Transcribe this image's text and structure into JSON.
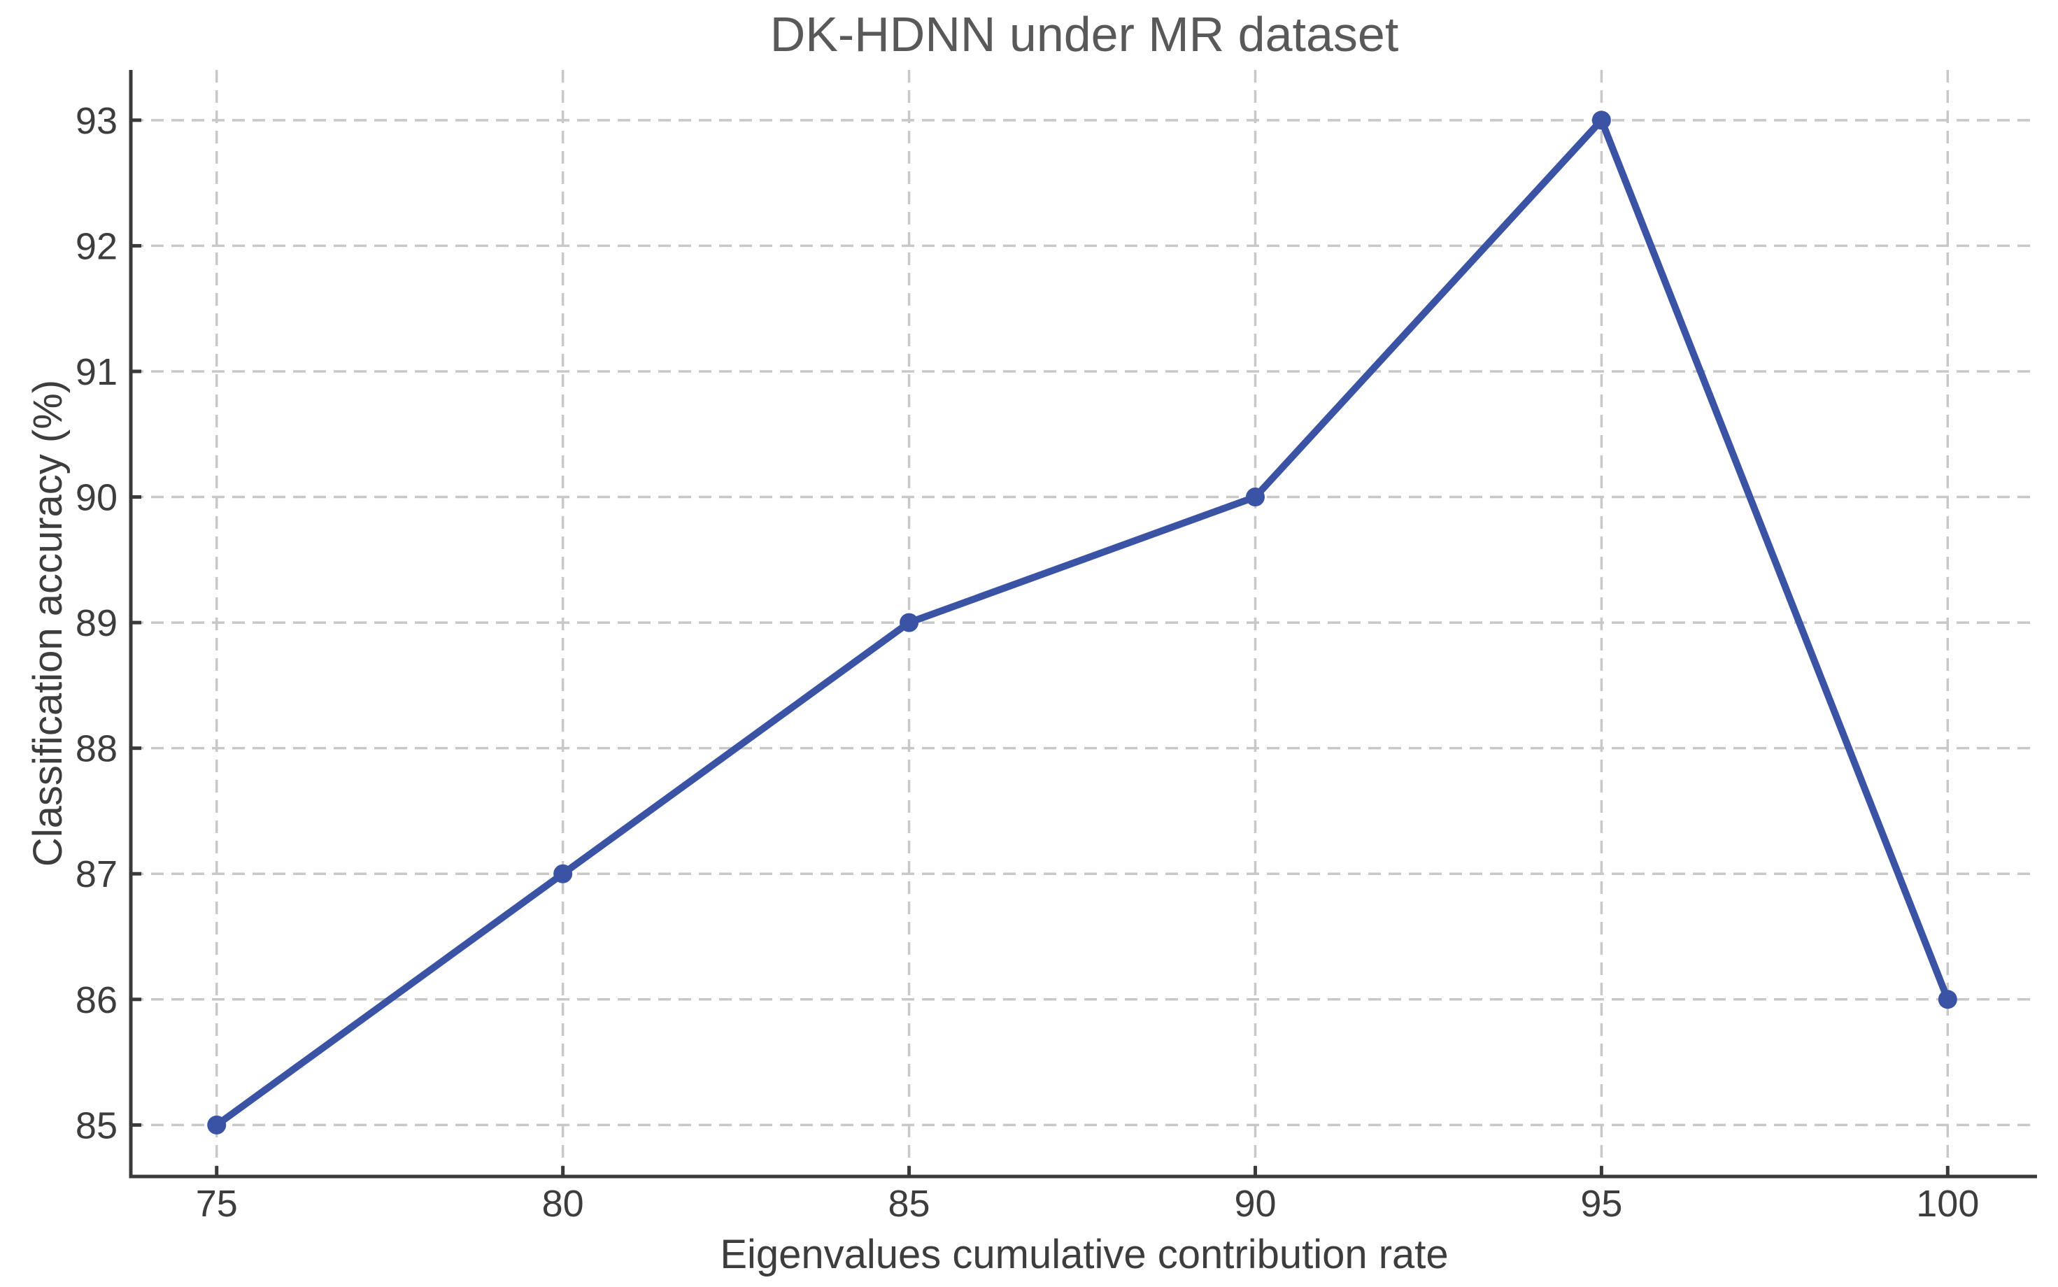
{
  "chart_data": {
    "type": "line",
    "title": "DK-HDNN under MR dataset",
    "xlabel": "Eigenvalues cumulative contribution rate",
    "ylabel": "Classification accuracy (%)",
    "x": [
      75,
      80,
      85,
      90,
      95,
      100
    ],
    "y": [
      85,
      87,
      89,
      90,
      93,
      86
    ],
    "xticks": [
      75,
      80,
      85,
      90,
      95,
      100
    ],
    "yticks": [
      85,
      86,
      87,
      88,
      89,
      90,
      91,
      92,
      93
    ],
    "xlim": [
      73.76,
      101.29
    ],
    "ylim": [
      84.59,
      93.4
    ],
    "grid": true,
    "grid_style": "dashed",
    "legend": "none",
    "line_color": "#3a53a4",
    "marker": "circle",
    "marker_color": "#3a53a4",
    "grid_color": "#c8c8c8",
    "axis_color": "#3a3a3a",
    "tick_label_color": "#3d3d3d",
    "title_color": "#595959"
  }
}
